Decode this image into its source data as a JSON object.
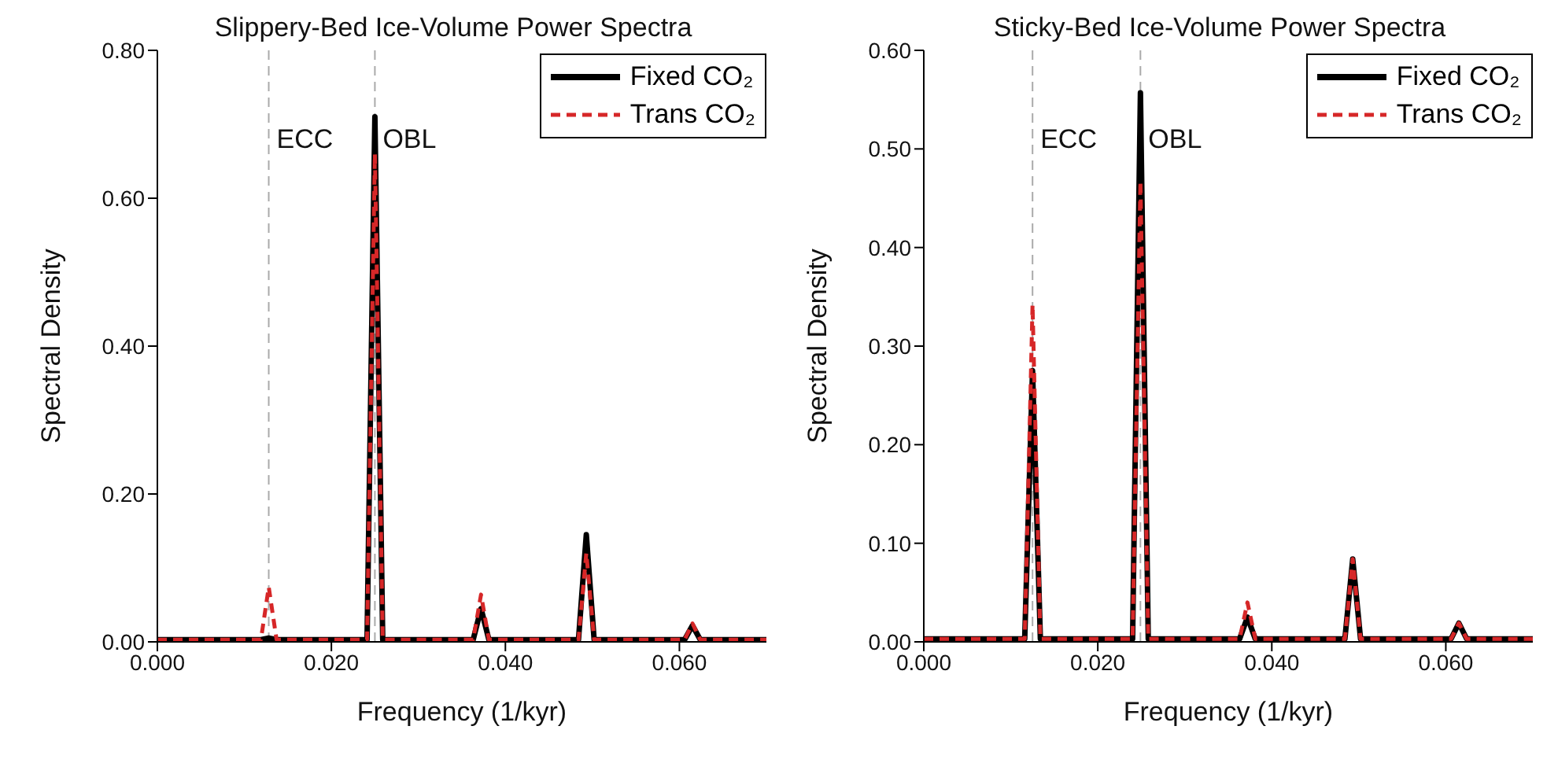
{
  "chart_data": [
    {
      "type": "line",
      "title": "Slippery-Bed Ice-Volume Power Spectra",
      "xlabel": "Frequency (1/kyr)",
      "ylabel": "Spectral Density",
      "xlim": [
        0,
        0.07
      ],
      "xticks": [
        {
          "value": 0,
          "label": "0.000"
        },
        {
          "value": 0.02,
          "label": "0.020"
        },
        {
          "value": 0.04,
          "label": "0.040"
        },
        {
          "value": 0.06,
          "label": "0.060"
        }
      ],
      "ylim": [
        0,
        0.8
      ],
      "yticks": [
        {
          "value": 0,
          "label": "0.00"
        },
        {
          "value": 0.2,
          "label": "0.20"
        },
        {
          "value": 0.4,
          "label": "0.40"
        },
        {
          "value": 0.6,
          "label": "0.60"
        },
        {
          "value": 0.8,
          "label": "0.80"
        }
      ],
      "grid": false,
      "legend": "top right",
      "marker": "none",
      "ref_lines": [
        {
          "axis": "x",
          "value": 0.0128,
          "label": "ECC",
          "color": "#aaaaaa",
          "line_style": "dashed"
        },
        {
          "axis": "x",
          "value": 0.025,
          "label": "OBL",
          "color": "#aaaaaa",
          "line_style": "dashed"
        }
      ],
      "series": [
        {
          "name": "Fixed CO₂",
          "color": "#000000",
          "line_style": "solid",
          "x": [
            0,
            0.0119,
            0.0128,
            0.0137,
            0.0241,
            0.025,
            0.0259,
            0.0363,
            0.0372,
            0.0381,
            0.0484,
            0.0493,
            0.0502,
            0.0606,
            0.0615,
            0.0624,
            0.07
          ],
          "values": [
            0.003,
            0.003,
            0.005,
            0.003,
            0.003,
            0.71,
            0.003,
            0.003,
            0.045,
            0.003,
            0.003,
            0.145,
            0.003,
            0.003,
            0.022,
            0.003,
            0.003
          ]
        },
        {
          "name": "Trans CO₂",
          "color": "#d62728",
          "line_style": "dashed",
          "x": [
            0,
            0.0119,
            0.0128,
            0.0137,
            0.0241,
            0.025,
            0.0259,
            0.0363,
            0.0372,
            0.0381,
            0.0484,
            0.0493,
            0.0502,
            0.0606,
            0.0615,
            0.0624,
            0.07
          ],
          "values": [
            0.003,
            0.003,
            0.074,
            0.003,
            0.003,
            0.66,
            0.003,
            0.003,
            0.064,
            0.003,
            0.003,
            0.12,
            0.003,
            0.003,
            0.025,
            0.003,
            0.003
          ]
        }
      ]
    },
    {
      "type": "line",
      "title": "Sticky-Bed Ice-Volume Power Spectra",
      "xlabel": "Frequency (1/kyr)",
      "ylabel": "Spectral Density",
      "xlim": [
        0,
        0.07
      ],
      "xticks": [
        {
          "value": 0,
          "label": "0.000"
        },
        {
          "value": 0.02,
          "label": "0.020"
        },
        {
          "value": 0.04,
          "label": "0.040"
        },
        {
          "value": 0.06,
          "label": "0.060"
        }
      ],
      "ylim": [
        0,
        0.6
      ],
      "yticks": [
        {
          "value": 0,
          "label": "0.00"
        },
        {
          "value": 0.1,
          "label": "0.10"
        },
        {
          "value": 0.2,
          "label": "0.20"
        },
        {
          "value": 0.3,
          "label": "0.30"
        },
        {
          "value": 0.4,
          "label": "0.40"
        },
        {
          "value": 0.5,
          "label": "0.50"
        },
        {
          "value": 0.6,
          "label": "0.60"
        }
      ],
      "grid": false,
      "legend": "top right",
      "marker": "none",
      "ref_lines": [
        {
          "axis": "x",
          "value": 0.0125,
          "label": "ECC",
          "color": "#aaaaaa",
          "line_style": "dashed"
        },
        {
          "axis": "x",
          "value": 0.0249,
          "label": "OBL",
          "color": "#aaaaaa",
          "line_style": "dashed"
        }
      ],
      "series": [
        {
          "name": "Fixed CO₂",
          "color": "#000000",
          "line_style": "solid",
          "x": [
            0,
            0.0116,
            0.0125,
            0.0134,
            0.024,
            0.0249,
            0.0258,
            0.0363,
            0.0372,
            0.0381,
            0.0484,
            0.0493,
            0.0502,
            0.0606,
            0.0615,
            0.0624,
            0.07
          ],
          "values": [
            0.003,
            0.003,
            0.275,
            0.003,
            0.003,
            0.557,
            0.003,
            0.003,
            0.025,
            0.003,
            0.003,
            0.084,
            0.003,
            0.003,
            0.019,
            0.003,
            0.003
          ]
        },
        {
          "name": "Trans CO₂",
          "color": "#d62728",
          "line_style": "dashed",
          "x": [
            0,
            0.0116,
            0.0125,
            0.0134,
            0.024,
            0.0249,
            0.0258,
            0.0363,
            0.0372,
            0.0381,
            0.0484,
            0.0493,
            0.0502,
            0.0606,
            0.0615,
            0.0624,
            0.07
          ],
          "values": [
            0.003,
            0.003,
            0.342,
            0.003,
            0.003,
            0.467,
            0.003,
            0.003,
            0.04,
            0.003,
            0.003,
            0.084,
            0.003,
            0.003,
            0.019,
            0.003,
            0.003
          ]
        }
      ]
    }
  ]
}
